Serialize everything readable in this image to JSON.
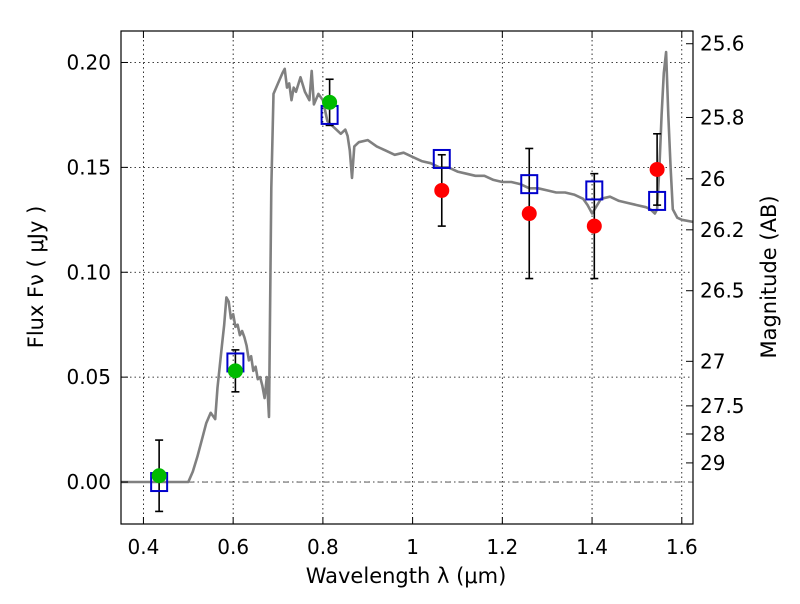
{
  "chart_data": {
    "type": "scatter",
    "title": "",
    "xlabel": "Wavelength  λ (μm)",
    "ylabel": "Flux  Fν  ( μJy )",
    "y2label": "Magnitude (AB)",
    "xlim": [
      0.35,
      1.625
    ],
    "ylim": [
      -0.02,
      0.215
    ],
    "grid": true,
    "legend": "none",
    "x_ticks": [
      "0.4",
      "0.6",
      "0.8",
      "1",
      "1.2",
      "1.4",
      "1.6"
    ],
    "x_tick_values": [
      0.4,
      0.6,
      0.8,
      1.0,
      1.2,
      1.4,
      1.6
    ],
    "y_ticks": [
      "0.00",
      "0.05",
      "0.10",
      "0.15",
      "0.20"
    ],
    "y_tick_values": [
      0.0,
      0.05,
      0.1,
      0.15,
      0.2
    ],
    "y2_ticks": [
      "25.6",
      "25.8",
      "26",
      "26.2",
      "26.5",
      "27",
      "27.5",
      "28",
      "29"
    ],
    "y2_tick_values": [
      25.6,
      25.8,
      26.0,
      26.2,
      26.5,
      27.0,
      27.5,
      28.0,
      29.0
    ],
    "colors": {
      "sed": "#808080",
      "green_points": "#00bb00",
      "red_points": "#ff0000",
      "model_boxes": "#0000cc",
      "errorbars": "#000000"
    },
    "sed_spectrum": {
      "x": [
        0.35,
        0.5,
        0.51,
        0.52,
        0.53,
        0.54,
        0.55,
        0.56,
        0.565,
        0.57,
        0.575,
        0.58,
        0.585,
        0.59,
        0.595,
        0.6,
        0.605,
        0.61,
        0.615,
        0.62,
        0.625,
        0.63,
        0.635,
        0.64,
        0.645,
        0.65,
        0.655,
        0.66,
        0.665,
        0.67,
        0.675,
        0.68,
        0.685,
        0.69,
        0.7,
        0.71,
        0.715,
        0.72,
        0.725,
        0.73,
        0.735,
        0.74,
        0.75,
        0.76,
        0.77,
        0.775,
        0.78,
        0.79,
        0.8,
        0.81,
        0.82,
        0.83,
        0.84,
        0.85,
        0.855,
        0.86,
        0.865,
        0.87,
        0.88,
        0.9,
        0.92,
        0.94,
        0.96,
        0.98,
        1.0,
        1.02,
        1.04,
        1.06,
        1.08,
        1.1,
        1.12,
        1.14,
        1.16,
        1.18,
        1.2,
        1.22,
        1.24,
        1.26,
        1.28,
        1.3,
        1.32,
        1.34,
        1.36,
        1.38,
        1.39,
        1.4,
        1.42,
        1.44,
        1.46,
        1.48,
        1.5,
        1.52,
        1.53,
        1.54,
        1.545,
        1.55,
        1.555,
        1.56,
        1.565,
        1.57,
        1.575,
        1.58,
        1.59,
        1.6,
        1.625
      ],
      "y": [
        0.0,
        0.0,
        0.005,
        0.012,
        0.02,
        0.028,
        0.033,
        0.03,
        0.045,
        0.055,
        0.065,
        0.075,
        0.088,
        0.086,
        0.078,
        0.08,
        0.074,
        0.075,
        0.07,
        0.072,
        0.069,
        0.065,
        0.058,
        0.06,
        0.053,
        0.055,
        0.049,
        0.05,
        0.046,
        0.04,
        0.05,
        0.031,
        0.14,
        0.185,
        0.19,
        0.195,
        0.197,
        0.188,
        0.19,
        0.182,
        0.188,
        0.186,
        0.193,
        0.186,
        0.182,
        0.196,
        0.18,
        0.185,
        0.182,
        0.172,
        0.17,
        0.168,
        0.166,
        0.168,
        0.165,
        0.158,
        0.145,
        0.16,
        0.162,
        0.163,
        0.16,
        0.158,
        0.156,
        0.157,
        0.155,
        0.153,
        0.152,
        0.15,
        0.15,
        0.148,
        0.147,
        0.146,
        0.146,
        0.144,
        0.143,
        0.143,
        0.142,
        0.14,
        0.14,
        0.139,
        0.138,
        0.138,
        0.137,
        0.135,
        0.132,
        0.128,
        0.135,
        0.136,
        0.134,
        0.133,
        0.132,
        0.131,
        0.13,
        0.128,
        0.13,
        0.15,
        0.175,
        0.195,
        0.205,
        0.175,
        0.15,
        0.13,
        0.126,
        0.125,
        0.124
      ]
    },
    "green_points": {
      "x": [
        0.435,
        0.605,
        0.815
      ],
      "y": [
        0.003,
        0.053,
        0.181
      ],
      "yerr": [
        0.017,
        0.01,
        0.011
      ]
    },
    "red_points": {
      "x": [
        1.065,
        1.26,
        1.405,
        1.545
      ],
      "y": [
        0.139,
        0.128,
        0.122,
        0.149
      ],
      "yerr": [
        0.017,
        0.031,
        0.025,
        0.017
      ]
    },
    "model_boxes": {
      "x": [
        0.435,
        0.605,
        0.815,
        1.065,
        1.26,
        1.405,
        1.545
      ],
      "y": [
        0.0,
        0.057,
        0.175,
        0.154,
        0.142,
        0.139,
        0.134
      ]
    }
  }
}
